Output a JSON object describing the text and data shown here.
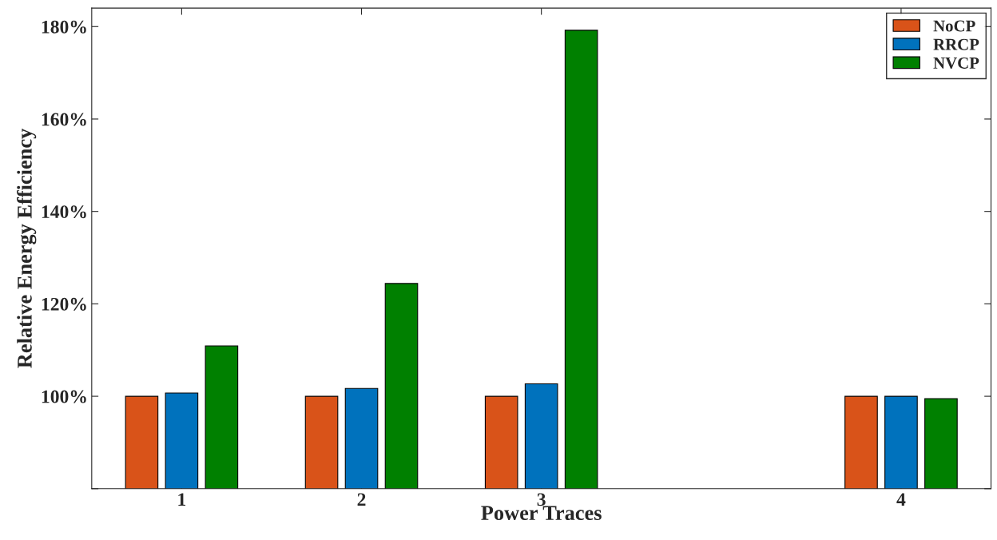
{
  "chart_data": {
    "type": "bar",
    "xlabel": "Power Traces",
    "ylabel": "Relative Energy Efficiency",
    "categories": [
      "1",
      "2",
      "3",
      null,
      "4"
    ],
    "series": [
      {
        "name": "NoCP",
        "color": "#d95319",
        "values": [
          100,
          100,
          100,
          null,
          100
        ]
      },
      {
        "name": "RRCP",
        "color": "#0072bd",
        "values": [
          100.7,
          101.7,
          102.7,
          null,
          100
        ]
      },
      {
        "name": "NVCP",
        "color": "#008000",
        "values": [
          110.9,
          124.4,
          179.2,
          null,
          99.5
        ]
      }
    ],
    "ylim": [
      80,
      184
    ],
    "yticks": [
      {
        "value": 80,
        "label": null
      },
      {
        "value": 100,
        "label": "100%"
      },
      {
        "value": 120,
        "label": "120%"
      },
      {
        "value": 140,
        "label": "140%"
      },
      {
        "value": 160,
        "label": "160%"
      },
      {
        "value": 180,
        "label": "180%"
      }
    ],
    "grid": false,
    "legend": "top right"
  }
}
